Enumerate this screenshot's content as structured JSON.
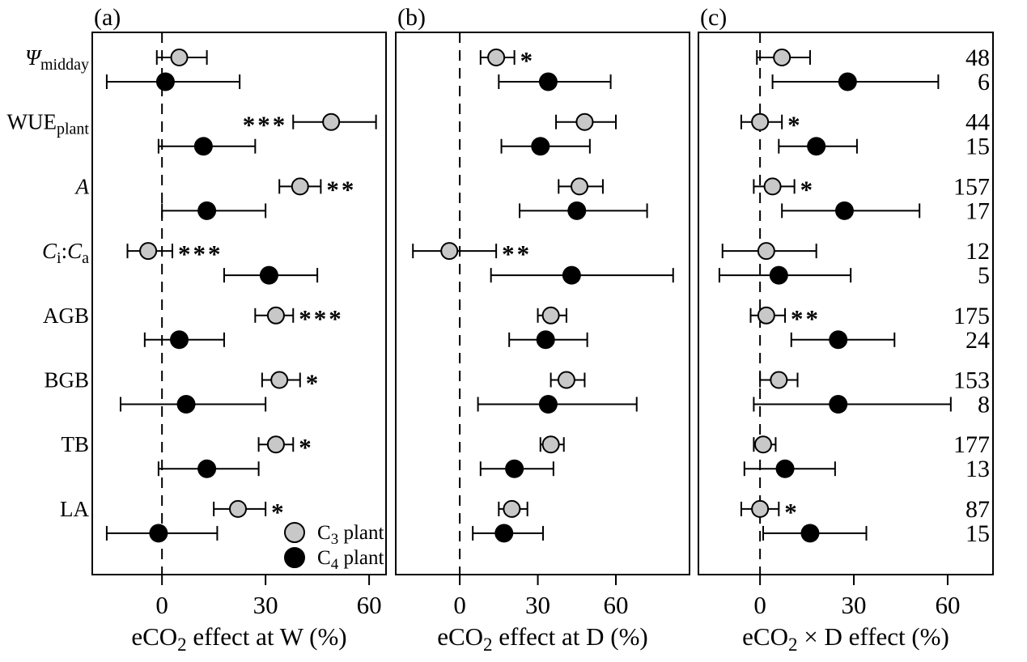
{
  "figure": {
    "background": "#ffffff",
    "frame_color": "#000000"
  },
  "chart_data": {
    "type": "scatter",
    "subtype": "forest-plot-dot-errorbar",
    "grid": false,
    "zero_reference_line": {
      "value": 0,
      "style": "dashed"
    },
    "series": [
      {
        "id": "C3",
        "color": "#c8c8c8",
        "label_segments": [
          {
            "t": "C"
          },
          {
            "t": "3",
            "sub": true
          },
          {
            "t": " plant"
          }
        ]
      },
      {
        "id": "C4",
        "color": "#000000",
        "label_segments": [
          {
            "t": "C"
          },
          {
            "t": "4",
            "sub": true
          },
          {
            "t": " plant"
          }
        ]
      }
    ],
    "legend_position": "inside-panel-a-bottom-right",
    "variables": [
      {
        "id": "psi-midday",
        "label_segments": [
          {
            "t": "Ψ",
            "i": true
          },
          {
            "t": "midday",
            "sub": true
          }
        ]
      },
      {
        "id": "wue-plant",
        "label_segments": [
          {
            "t": "WUE"
          },
          {
            "t": "plant",
            "sub": true
          }
        ]
      },
      {
        "id": "photosynthesis-a",
        "label_segments": [
          {
            "t": "A",
            "i": true
          }
        ]
      },
      {
        "id": "ci-ca",
        "label_segments": [
          {
            "t": "C",
            "i": true
          },
          {
            "t": "i",
            "sub": true
          },
          {
            "t": ":"
          },
          {
            "t": "C",
            "i": true
          },
          {
            "t": "a",
            "sub": true
          }
        ]
      },
      {
        "id": "agb",
        "label_segments": [
          {
            "t": "AGB"
          }
        ]
      },
      {
        "id": "bgb",
        "label_segments": [
          {
            "t": "BGB"
          }
        ]
      },
      {
        "id": "tb",
        "label_segments": [
          {
            "t": "TB"
          }
        ]
      },
      {
        "id": "la",
        "label_segments": [
          {
            "t": "LA"
          }
        ]
      }
    ],
    "panels": [
      {
        "id": "a",
        "title": "(a)",
        "xlabel_segments": [
          {
            "t": "eCO"
          },
          {
            "t": "2",
            "sub": true
          },
          {
            "t": " effect at W (%)"
          }
        ],
        "xticks": [
          0,
          30,
          60
        ],
        "xlim": [
          -20.2,
          64.9
        ],
        "show_sample_sizes": false,
        "has_legend": true,
        "rows": [
          {
            "variable": "psi-midday",
            "series": "C3",
            "mean": 5,
            "lo": -1.5,
            "hi": 13,
            "sig": ""
          },
          {
            "variable": "psi-midday",
            "series": "C4",
            "mean": 1,
            "lo": -16,
            "hi": 22.5,
            "sig": ""
          },
          {
            "variable": "wue-plant",
            "series": "C3",
            "mean": 49,
            "lo": 38,
            "hi": 62,
            "sig": "***",
            "sig_side": "left"
          },
          {
            "variable": "wue-plant",
            "series": "C4",
            "mean": 12,
            "lo": -1,
            "hi": 27,
            "sig": ""
          },
          {
            "variable": "photosynthesis-a",
            "series": "C3",
            "mean": 40,
            "lo": 34,
            "hi": 46,
            "sig": "**"
          },
          {
            "variable": "photosynthesis-a",
            "series": "C4",
            "mean": 13,
            "lo": 0,
            "hi": 30,
            "sig": ""
          },
          {
            "variable": "ci-ca",
            "series": "C3",
            "mean": -4,
            "lo": -10,
            "hi": 3,
            "sig": "***"
          },
          {
            "variable": "ci-ca",
            "series": "C4",
            "mean": 31,
            "lo": 18,
            "hi": 45,
            "sig": ""
          },
          {
            "variable": "agb",
            "series": "C3",
            "mean": 33,
            "lo": 27,
            "hi": 38,
            "sig": "***"
          },
          {
            "variable": "agb",
            "series": "C4",
            "mean": 5,
            "lo": -5,
            "hi": 18,
            "sig": ""
          },
          {
            "variable": "bgb",
            "series": "C3",
            "mean": 34,
            "lo": 29,
            "hi": 40,
            "sig": "*"
          },
          {
            "variable": "bgb",
            "series": "C4",
            "mean": 7,
            "lo": -12,
            "hi": 30,
            "sig": ""
          },
          {
            "variable": "tb",
            "series": "C3",
            "mean": 33,
            "lo": 28,
            "hi": 38,
            "sig": "*"
          },
          {
            "variable": "tb",
            "series": "C4",
            "mean": 13,
            "lo": -1,
            "hi": 28,
            "sig": ""
          },
          {
            "variable": "la",
            "series": "C3",
            "mean": 22,
            "lo": 15,
            "hi": 30,
            "sig": "*"
          },
          {
            "variable": "la",
            "series": "C4",
            "mean": -1,
            "lo": -16,
            "hi": 16,
            "sig": ""
          }
        ]
      },
      {
        "id": "b",
        "title": "(b)",
        "xlabel_segments": [
          {
            "t": "eCO"
          },
          {
            "t": "2",
            "sub": true
          },
          {
            "t": " effect at D (%)"
          }
        ],
        "xticks": [
          0,
          30,
          60
        ],
        "xlim": [
          -24.6,
          88.3
        ],
        "show_sample_sizes": false,
        "has_legend": false,
        "rows": [
          {
            "variable": "psi-midday",
            "series": "C3",
            "mean": 14,
            "lo": 8,
            "hi": 21,
            "sig": "*"
          },
          {
            "variable": "psi-midday",
            "series": "C4",
            "mean": 34,
            "lo": 15,
            "hi": 58,
            "sig": ""
          },
          {
            "variable": "wue-plant",
            "series": "C3",
            "mean": 48,
            "lo": 37,
            "hi": 60,
            "sig": ""
          },
          {
            "variable": "wue-plant",
            "series": "C4",
            "mean": 31,
            "lo": 16,
            "hi": 50,
            "sig": ""
          },
          {
            "variable": "photosynthesis-a",
            "series": "C3",
            "mean": 46,
            "lo": 38,
            "hi": 55,
            "sig": ""
          },
          {
            "variable": "photosynthesis-a",
            "series": "C4",
            "mean": 45,
            "lo": 23,
            "hi": 72,
            "sig": ""
          },
          {
            "variable": "ci-ca",
            "series": "C3",
            "mean": -4,
            "lo": -18,
            "hi": 14,
            "sig": "**"
          },
          {
            "variable": "ci-ca",
            "series": "C4",
            "mean": 43,
            "lo": 12,
            "hi": 82,
            "sig": ""
          },
          {
            "variable": "agb",
            "series": "C3",
            "mean": 35,
            "lo": 30,
            "hi": 41,
            "sig": ""
          },
          {
            "variable": "agb",
            "series": "C4",
            "mean": 33,
            "lo": 19,
            "hi": 49,
            "sig": ""
          },
          {
            "variable": "bgb",
            "series": "C3",
            "mean": 41,
            "lo": 35,
            "hi": 48,
            "sig": ""
          },
          {
            "variable": "bgb",
            "series": "C4",
            "mean": 34,
            "lo": 7,
            "hi": 68,
            "sig": ""
          },
          {
            "variable": "tb",
            "series": "C3",
            "mean": 35,
            "lo": 31,
            "hi": 40,
            "sig": ""
          },
          {
            "variable": "tb",
            "series": "C4",
            "mean": 21,
            "lo": 8,
            "hi": 36,
            "sig": ""
          },
          {
            "variable": "la",
            "series": "C3",
            "mean": 20,
            "lo": 15,
            "hi": 26,
            "sig": ""
          },
          {
            "variable": "la",
            "series": "C4",
            "mean": 17,
            "lo": 5,
            "hi": 32,
            "sig": ""
          }
        ]
      },
      {
        "id": "c",
        "title": "(c)",
        "xlabel_segments": [
          {
            "t": "eCO"
          },
          {
            "t": "2",
            "sub": true
          },
          {
            "t": " × D effect (%)"
          }
        ],
        "xticks": [
          0,
          30,
          60
        ],
        "xlim": [
          -19.7,
          74.5
        ],
        "show_sample_sizes": true,
        "has_legend": false,
        "rows": [
          {
            "variable": "psi-midday",
            "series": "C3",
            "mean": 7,
            "lo": -1,
            "hi": 16,
            "sig": "",
            "n": "48"
          },
          {
            "variable": "psi-midday",
            "series": "C4",
            "mean": 28,
            "lo": 4,
            "hi": 57,
            "sig": "",
            "n": "6"
          },
          {
            "variable": "wue-plant",
            "series": "C3",
            "mean": 0,
            "lo": -6,
            "hi": 7,
            "sig": "*",
            "n": "44"
          },
          {
            "variable": "wue-plant",
            "series": "C4",
            "mean": 18,
            "lo": 6,
            "hi": 31,
            "sig": "",
            "n": "15"
          },
          {
            "variable": "photosynthesis-a",
            "series": "C3",
            "mean": 4,
            "lo": -2,
            "hi": 11,
            "sig": "*",
            "n": "157"
          },
          {
            "variable": "photosynthesis-a",
            "series": "C4",
            "mean": 27,
            "lo": 7,
            "hi": 51,
            "sig": "",
            "n": "17"
          },
          {
            "variable": "ci-ca",
            "series": "C3",
            "mean": 2,
            "lo": -12,
            "hi": 18,
            "sig": "",
            "n": "12"
          },
          {
            "variable": "ci-ca",
            "series": "C4",
            "mean": 6,
            "lo": -13,
            "hi": 29,
            "sig": "",
            "n": "5"
          },
          {
            "variable": "agb",
            "series": "C3",
            "mean": 2,
            "lo": -3,
            "hi": 8,
            "sig": "**",
            "n": "175"
          },
          {
            "variable": "agb",
            "series": "C4",
            "mean": 25,
            "lo": 10,
            "hi": 43,
            "sig": "",
            "n": "24"
          },
          {
            "variable": "bgb",
            "series": "C3",
            "mean": 6,
            "lo": 0,
            "hi": 12,
            "sig": "",
            "n": "153"
          },
          {
            "variable": "bgb",
            "series": "C4",
            "mean": 25,
            "lo": -2,
            "hi": 61,
            "sig": "",
            "n": "8"
          },
          {
            "variable": "tb",
            "series": "C3",
            "mean": 1,
            "lo": -2,
            "hi": 5,
            "sig": "",
            "n": "177"
          },
          {
            "variable": "tb",
            "series": "C4",
            "mean": 8,
            "lo": -5,
            "hi": 24,
            "sig": "",
            "n": "13"
          },
          {
            "variable": "la",
            "series": "C3",
            "mean": 0,
            "lo": -6,
            "hi": 6,
            "sig": "*",
            "n": "87"
          },
          {
            "variable": "la",
            "series": "C4",
            "mean": 16,
            "lo": 1,
            "hi": 34,
            "sig": "",
            "n": "15"
          }
        ]
      }
    ]
  }
}
